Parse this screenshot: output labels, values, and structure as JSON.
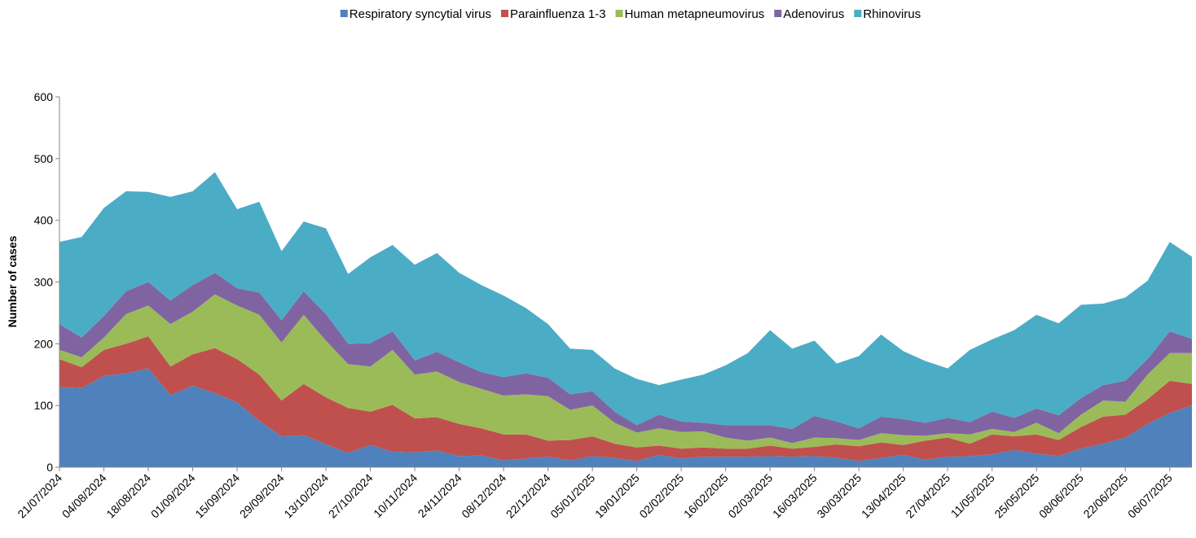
{
  "chart_data": {
    "type": "stacked-area",
    "y_label": "Number of cases",
    "categories": [
      "21/07/2024",
      null,
      "04/08/2024",
      null,
      "18/08/2024",
      null,
      "01/09/2024",
      null,
      "15/09/2024",
      null,
      "29/09/2024",
      null,
      "13/10/2024",
      null,
      "27/10/2024",
      null,
      "10/11/2024",
      null,
      "24/11/2024",
      null,
      "08/12/2024",
      null,
      "22/12/2024",
      null,
      "05/01/2025",
      null,
      "19/01/2025",
      null,
      "02/02/2025",
      null,
      "16/02/2025",
      null,
      "02/03/2025",
      null,
      "16/03/2025",
      null,
      "30/03/2025",
      null,
      "13/04/2025",
      null,
      "27/04/2025",
      null,
      "11/05/2025",
      null,
      "25/05/2025",
      null,
      "08/06/2025",
      null,
      "22/06/2025",
      null,
      "06/07/2025",
      null
    ],
    "ylim": [
      0,
      600
    ],
    "yticks": [
      0,
      100,
      200,
      300,
      400,
      500,
      600
    ],
    "series": [
      {
        "name": "Respiratory syncytial virus",
        "color": "#4f81bd",
        "values": [
          130,
          128,
          148,
          152,
          160,
          117,
          132,
          120,
          105,
          75,
          50,
          52,
          37,
          23,
          36,
          25,
          24,
          27,
          18,
          19,
          11,
          14,
          17,
          11,
          18,
          15,
          10,
          20,
          14,
          17,
          17,
          17,
          18,
          17,
          18,
          15,
          10,
          15,
          20,
          12,
          17,
          18,
          21,
          28,
          22,
          18,
          30,
          38,
          48,
          70,
          88,
          100
        ]
      },
      {
        "name": "Parainfluenza 1-3",
        "color": "#c0504d",
        "values": [
          45,
          34,
          42,
          48,
          52,
          46,
          51,
          73,
          70,
          75,
          58,
          83,
          76,
          73,
          54,
          76,
          55,
          54,
          52,
          44,
          42,
          39,
          26,
          33,
          32,
          23,
          22,
          15,
          16,
          15,
          13,
          13,
          17,
          13,
          15,
          22,
          24,
          25,
          16,
          31,
          31,
          20,
          32,
          22,
          31,
          26,
          35,
          44,
          37,
          40,
          52,
          35
        ]
      },
      {
        "name": "Human metapneumovirus",
        "color": "#9bbb59",
        "values": [
          15,
          16,
          20,
          48,
          50,
          69,
          69,
          87,
          87,
          97,
          94,
          112,
          92,
          71,
          73,
          89,
          71,
          74,
          68,
          64,
          63,
          65,
          72,
          49,
          50,
          34,
          24,
          28,
          27,
          26,
          18,
          13,
          13,
          9,
          15,
          10,
          10,
          15,
          16,
          8,
          7,
          15,
          9,
          7,
          19,
          11,
          20,
          26,
          21,
          40,
          45,
          50
        ]
      },
      {
        "name": "Adenovirus",
        "color": "#8064a2",
        "values": [
          42,
          32,
          35,
          37,
          38,
          38,
          43,
          35,
          28,
          36,
          36,
          38,
          43,
          33,
          38,
          30,
          23,
          32,
          32,
          27,
          30,
          34,
          30,
          25,
          23,
          18,
          12,
          22,
          17,
          14,
          20,
          25,
          20,
          23,
          35,
          27,
          19,
          27,
          26,
          21,
          25,
          20,
          28,
          23,
          23,
          29,
          27,
          25,
          34,
          25,
          35,
          23
        ]
      },
      {
        "name": "Rhinovirus",
        "color": "#4bacc6",
        "values": [
          133,
          163,
          175,
          162,
          146,
          168,
          152,
          163,
          128,
          147,
          112,
          113,
          139,
          113,
          139,
          140,
          155,
          160,
          145,
          141,
          132,
          106,
          87,
          74,
          67,
          70,
          75,
          48,
          68,
          78,
          97,
          117,
          154,
          130,
          122,
          94,
          117,
          133,
          110,
          100,
          80,
          117,
          117,
          142,
          152,
          149,
          151,
          132,
          135,
          127,
          145,
          133
        ]
      }
    ]
  }
}
